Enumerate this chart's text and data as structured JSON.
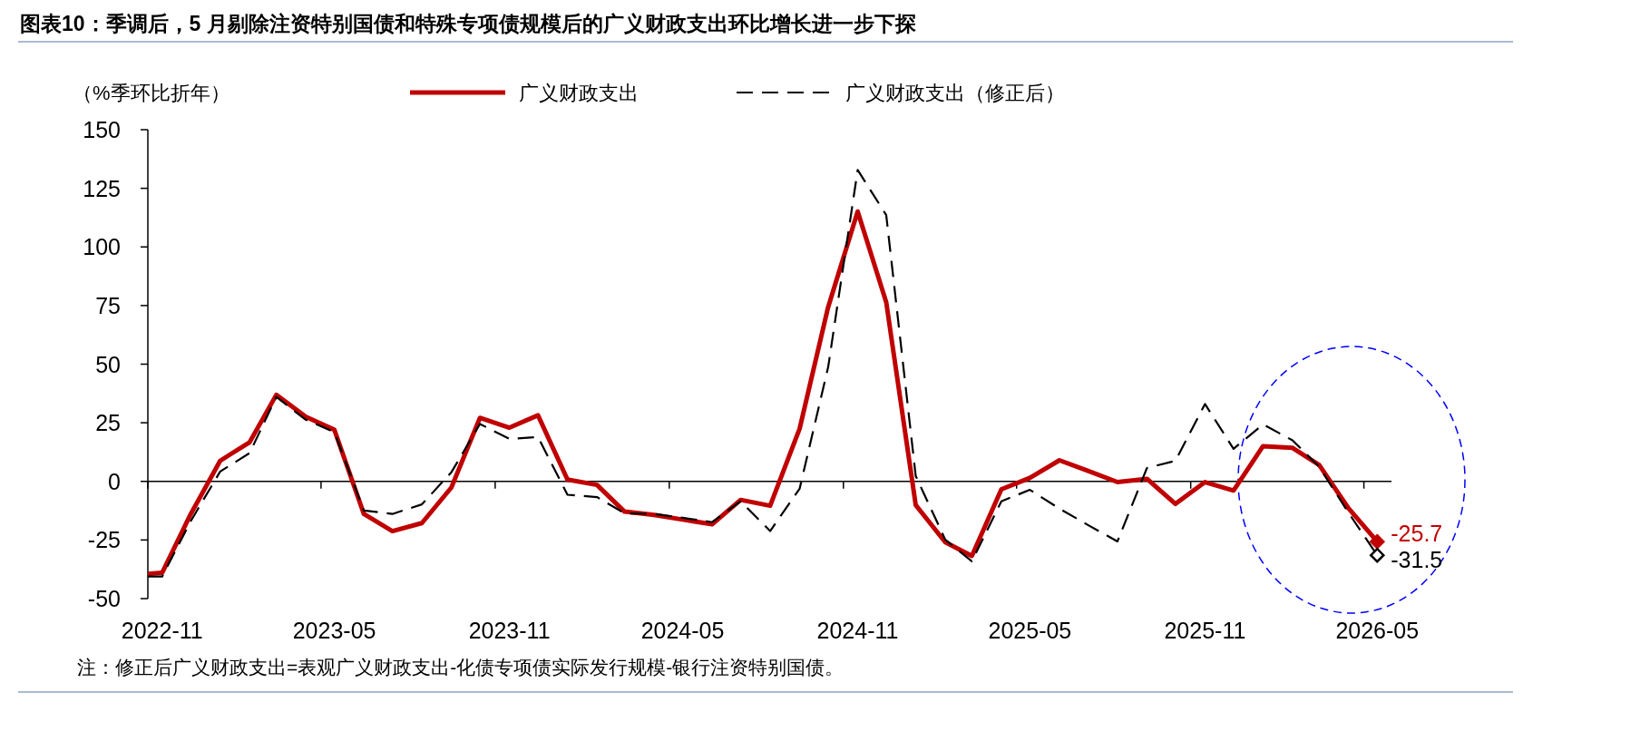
{
  "chart_data": {
    "type": "line",
    "title": "图表10：季调后，5 月剔除注资特别国债和特殊专项债规模后的广义财政支出环比增长进一步下探",
    "ylabel": "（%季环比折年）",
    "x": [
      "2022-10-17",
      "2022-11",
      "2022-12",
      "2023-01",
      "2023-02",
      "2023-03",
      "2023-04",
      "2023-05",
      "2023-06",
      "2023-07",
      "2023-08",
      "2023-09",
      "2023-10",
      "2023-11",
      "2023-12",
      "2024-01",
      "2024-02",
      "2024-03",
      "2024-04",
      "2024-05",
      "2024-06",
      "2024-07",
      "2024-08",
      "2024-09",
      "2024-10",
      "2024-11",
      "2024-12",
      "2025-01",
      "2025-02",
      "2025-03",
      "2025-04",
      "2025-05",
      "2025-06",
      "2025-07",
      "2025-08",
      "2025-09",
      "2025-10",
      "2025-11",
      "2025-12",
      "2026-01",
      "2026-02",
      "2026-03",
      "2026-04",
      "2026-05"
    ],
    "series": [
      {
        "name": "广义财政支出",
        "color": "#c00000",
        "line_style": "solid",
        "values": [
          -39.5,
          -39,
          -14,
          8.8,
          16.7,
          36.9,
          27.6,
          22,
          -13.9,
          -21.2,
          -17.8,
          -2.6,
          27.1,
          22.9,
          28.2,
          0.8,
          -1.5,
          -12.9,
          -14.3,
          -16.3,
          -18.3,
          -7.9,
          -10.4,
          22.5,
          74.4,
          115.1,
          76.4,
          -10.1,
          -25.9,
          -31.8,
          -3.4,
          1.5,
          9.0,
          4.5,
          -0.3,
          1.1,
          -9.6,
          -0.3,
          -3.9,
          15.0,
          14.3,
          7.0,
          -11.6,
          -25.7
        ]
      },
      {
        "name": "广义财政支出（修正后）",
        "color": "#000000",
        "line_style": "dashed",
        "values": [
          -40.6,
          -40.6,
          -17,
          4.2,
          12.1,
          36,
          26.3,
          21,
          -12.4,
          -13.9,
          -9.8,
          3.9,
          24.5,
          18.1,
          18.9,
          -5.7,
          -6.7,
          -13.6,
          -13.9,
          -15.5,
          -17.4,
          -8.5,
          -21.2,
          -3.1,
          48.8,
          132.8,
          113.6,
          2.3,
          -24.8,
          -34.1,
          -8.5,
          -3.6,
          -11.6,
          -18.6,
          -25.6,
          5.7,
          8.8,
          33.0,
          13.9,
          24.3,
          17.5,
          6.2,
          -13.5,
          -31.5
        ]
      },
      {
        "color": "#c00000",
        "type": "scatter",
        "marker": "diamond",
        "x": [
          "2026-05"
        ],
        "values": [
          -25.7
        ]
      },
      {
        "color": "#000000",
        "type": "scatter",
        "marker": "diamond",
        "x": [
          "2026-05"
        ],
        "values": [
          -31.5
        ]
      }
    ],
    "annotations": [
      {
        "text": "-25.7",
        "x": "2026-05",
        "y": -25.7
      },
      {
        "text": "-31.5",
        "x": "2026-05",
        "y": -31.5
      },
      "注：修正后广义财政支出=表观广义财政支出-化债专项债实际发行规模-银行注资特别国债。"
    ],
    "xlim": [
      "2022-10-17",
      "2026-05-16"
    ],
    "xticks": [
      {
        "value": "2022-10-17",
        "label": null
      },
      {
        "value": "2022-11",
        "label": "2022-11"
      },
      {
        "value": "2023-04-17",
        "label": null
      },
      {
        "value": "2023-05",
        "label": "2023-05"
      },
      {
        "value": "2023-10-17",
        "label": null
      },
      {
        "value": "2023-11",
        "label": "2023-11"
      },
      {
        "value": "2024-04-17",
        "label": null
      },
      {
        "value": "2024-05",
        "label": "2024-05"
      },
      {
        "value": "2024-10-17",
        "label": null
      },
      {
        "value": "2024-11",
        "label": "2024-11"
      },
      {
        "value": "2025-04-17",
        "label": null
      },
      {
        "value": "2025-05",
        "label": "2025-05"
      },
      {
        "value": "2025-10-17",
        "label": null
      },
      {
        "value": "2025-11",
        "label": "2025-11"
      },
      {
        "value": "2026-04-17",
        "label": null
      },
      {
        "value": "2026-05",
        "label": "2026-05"
      }
    ],
    "ylim": [
      -50,
      150
    ],
    "yticks": [
      -50,
      -25,
      0,
      25,
      50,
      75,
      100,
      125,
      150
    ],
    "legend": "top"
  }
}
